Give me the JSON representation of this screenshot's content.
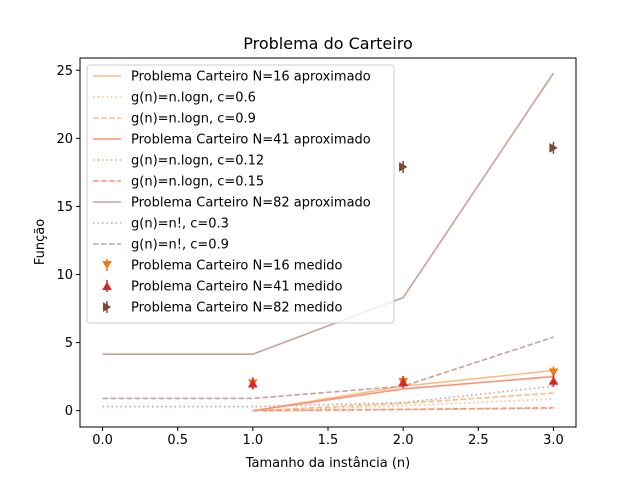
{
  "chart_data": {
    "type": "line",
    "title": "Problema do Carteiro",
    "xlabel": "Tamanho da instância (n)",
    "ylabel": "Função",
    "xlim": [
      -0.15,
      3.15
    ],
    "ylim": [
      -1.2,
      25.9
    ],
    "xticks": [
      0.0,
      0.5,
      1.0,
      1.5,
      2.0,
      2.5,
      3.0
    ],
    "xtick_labels": [
      "0.0",
      "0.5",
      "1.0",
      "1.5",
      "2.0",
      "2.5",
      "3.0"
    ],
    "yticks": [
      0,
      5,
      10,
      15,
      20,
      25
    ],
    "ytick_labels": [
      "0",
      "5",
      "10",
      "15",
      "20",
      "25"
    ],
    "grid": false,
    "legend_position": "upper-left",
    "series": [
      {
        "name": "Problema Carteiro N=16 aproximado",
        "kind": "line",
        "style": "solid",
        "color": "#fdbb84",
        "x": [
          1,
          2,
          3
        ],
        "y": [
          0.0,
          1.8,
          2.95
        ]
      },
      {
        "name": "g(n)=n.logn, c=0.6",
        "kind": "line",
        "style": "dotted",
        "color": "#fdbb84",
        "x": [
          1,
          2,
          3
        ],
        "y": [
          0.0,
          0.36,
          0.86
        ]
      },
      {
        "name": "g(n)=n.logn, c=0.9",
        "kind": "line",
        "style": "dashed",
        "color": "#fdbb84",
        "x": [
          1,
          2,
          3
        ],
        "y": [
          0.0,
          0.54,
          1.29
        ]
      },
      {
        "name": "Problema Carteiro N=41 aproximado",
        "kind": "line",
        "style": "solid",
        "color": "#fc9272",
        "x": [
          1,
          2,
          3
        ],
        "y": [
          0.0,
          1.6,
          2.5
        ]
      },
      {
        "name": "g(n)=n.logn, c=0.12",
        "kind": "line",
        "style": "dotted",
        "color": "#fc9272",
        "x": [
          1,
          2,
          3
        ],
        "y": [
          0.0,
          0.07,
          0.17
        ]
      },
      {
        "name": "g(n)=n.logn, c=0.15",
        "kind": "line",
        "style": "dashed",
        "color": "#fc9272",
        "x": [
          1,
          2,
          3
        ],
        "y": [
          0.0,
          0.09,
          0.21
        ]
      },
      {
        "name": "Problema Carteiro N=82 aproximado",
        "kind": "line",
        "style": "solid",
        "color": "#c9a195",
        "x": [
          0,
          1,
          2,
          3
        ],
        "y": [
          4.15,
          4.15,
          8.3,
          24.8
        ]
      },
      {
        "name": "g(n)=n!, c=0.3",
        "kind": "line",
        "style": "dotted",
        "color": "#c9a195",
        "x": [
          0,
          1,
          2,
          3
        ],
        "y": [
          0.3,
          0.3,
          0.6,
          1.8
        ]
      },
      {
        "name": "g(n)=n!, c=0.9",
        "kind": "line",
        "style": "dashed",
        "color": "#c9a195",
        "x": [
          0,
          1,
          2,
          3
        ],
        "y": [
          0.9,
          0.9,
          1.8,
          5.4
        ]
      },
      {
        "name": "Problema Carteiro N=16 medido",
        "kind": "marker",
        "marker": "triangle-down",
        "color": "#f07818",
        "x": [
          1,
          2,
          3
        ],
        "y": [
          2.0,
          2.1,
          2.8
        ]
      },
      {
        "name": "Problema Carteiro N=41 medido",
        "kind": "marker",
        "marker": "triangle-up",
        "color": "#d62728",
        "x": [
          1,
          2,
          3
        ],
        "y": [
          2.0,
          2.1,
          2.2
        ]
      },
      {
        "name": "Problema Carteiro N=82 medido",
        "kind": "marker",
        "marker": "triangle-right",
        "color": "#7a4a38",
        "x": [
          2,
          3
        ],
        "y": [
          17.9,
          19.3
        ]
      }
    ]
  }
}
